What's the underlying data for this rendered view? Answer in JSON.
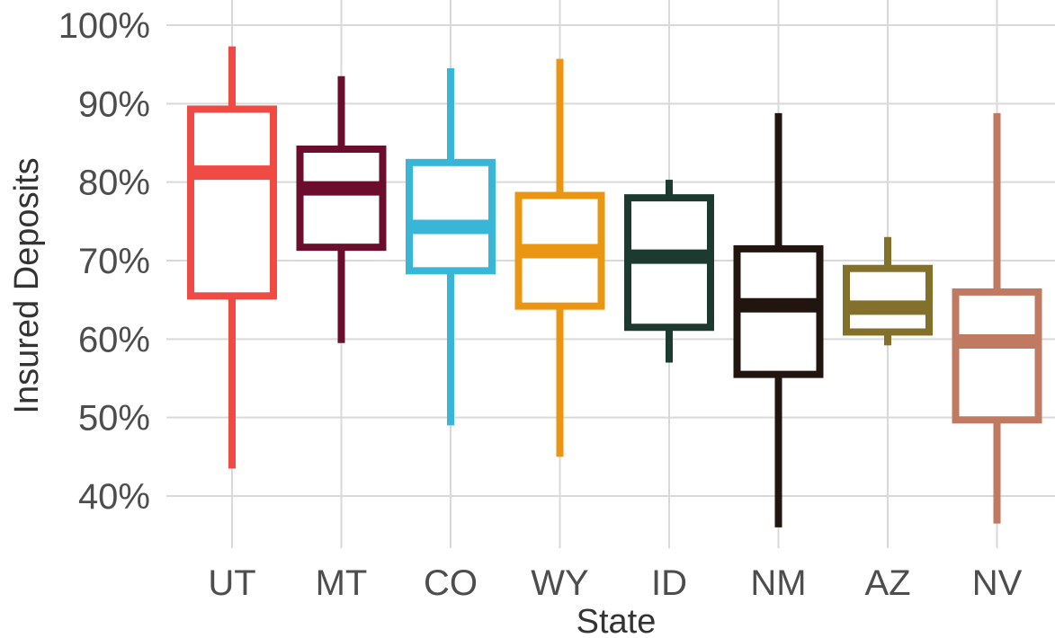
{
  "chart_data": {
    "type": "box",
    "title": "",
    "xlabel": "State",
    "ylabel": "Insured Deposits",
    "ylim": [
      33,
      100
    ],
    "yticks": [
      40,
      50,
      60,
      70,
      80,
      90,
      100
    ],
    "ytick_labels": [
      "40%",
      "50%",
      "60%",
      "70%",
      "80%",
      "90%",
      "100%"
    ],
    "grid": true,
    "legend": "none",
    "categories": [
      "UT",
      "MT",
      "CO",
      "WY",
      "ID",
      "NM",
      "AZ",
      "NV"
    ],
    "series": [
      {
        "category": "UT",
        "color": "#F04A44",
        "min": 43.5,
        "q1": 65.5,
        "median": 81.2,
        "q3": 89.3,
        "max": 97.3
      },
      {
        "category": "MT",
        "color": "#6B0E2E",
        "min": 59.5,
        "q1": 71.7,
        "median": 79.2,
        "q3": 84.2,
        "max": 93.5
      },
      {
        "category": "CO",
        "color": "#38B6D8",
        "min": 49.0,
        "q1": 68.7,
        "median": 74.3,
        "q3": 82.5,
        "max": 94.5
      },
      {
        "category": "WY",
        "color": "#EA9612",
        "min": 45.0,
        "q1": 64.2,
        "median": 71.2,
        "q3": 78.3,
        "max": 95.7
      },
      {
        "category": "ID",
        "color": "#1D3A30",
        "min": 57.0,
        "q1": 61.5,
        "median": 70.5,
        "q3": 78.0,
        "max": 80.3
      },
      {
        "category": "NM",
        "color": "#221510",
        "min": 36.0,
        "q1": 55.5,
        "median": 64.3,
        "q3": 71.5,
        "max": 88.8
      },
      {
        "category": "AZ",
        "color": "#83702A",
        "min": 59.2,
        "q1": 60.9,
        "median": 64.0,
        "q3": 69.0,
        "max": 73.0
      },
      {
        "category": "NV",
        "color": "#C07A62",
        "min": 36.5,
        "q1": 49.7,
        "median": 59.7,
        "q3": 66.0,
        "max": 88.8
      }
    ]
  }
}
